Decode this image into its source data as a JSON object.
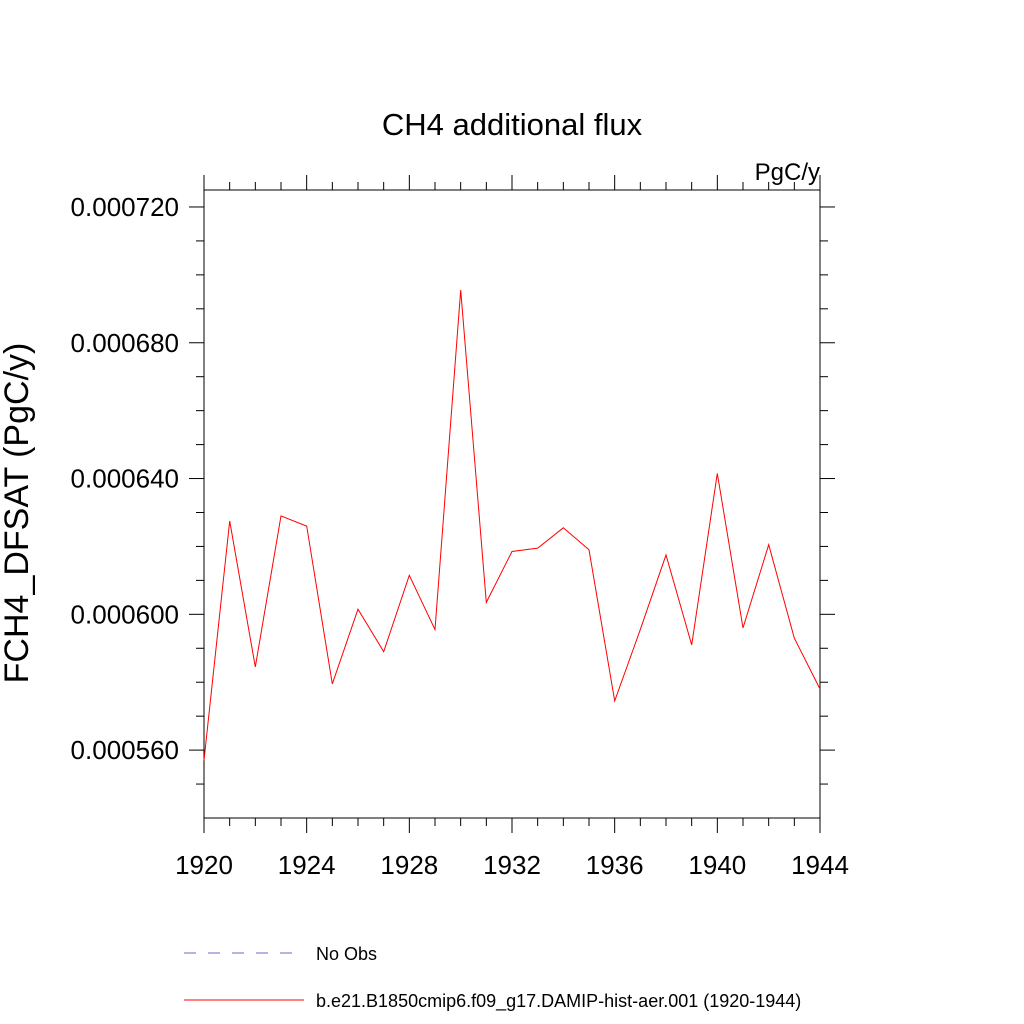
{
  "chart_data": {
    "type": "line",
    "title": "CH4 additional flux",
    "units_label": "PgC/y",
    "ylabel": "FCH4_DFSAT  (PgC/y)",
    "xlabel": "",
    "xlim": [
      1920,
      1944
    ],
    "ylim": [
      0.00054,
      0.000725
    ],
    "x_ticks": [
      1920,
      1924,
      1928,
      1932,
      1936,
      1940,
      1944
    ],
    "x_tick_labels": [
      "1920",
      "1924",
      "1928",
      "1932",
      "1936",
      "1940",
      "1944"
    ],
    "y_ticks": [
      0.00056,
      0.0006,
      0.00064,
      0.00068,
      0.00072
    ],
    "y_tick_labels": [
      "0.000560",
      "0.000600",
      "0.000640",
      "0.000680",
      "0.000720"
    ],
    "grid": false,
    "legend_position": "bottom",
    "series": [
      {
        "name": "b.e21.B1850cmip6.f09_g17.DAMIP-hist-aer.001 (1920-1944)",
        "color": "#ff0000",
        "style": "solid",
        "x": [
          1920,
          1921,
          1922,
          1923,
          1924,
          1925,
          1926,
          1927,
          1928,
          1929,
          1930,
          1931,
          1932,
          1933,
          1934,
          1935,
          1936,
          1937,
          1938,
          1939,
          1940,
          1941,
          1942,
          1943,
          1944
        ],
        "y": [
          0.000557,
          0.0006275,
          0.0005845,
          0.000629,
          0.000626,
          0.0005795,
          0.0006015,
          0.000589,
          0.0006115,
          0.0005955,
          0.0006955,
          0.0006035,
          0.0006185,
          0.0006195,
          0.0006255,
          0.000619,
          0.0005745,
          0.0005955,
          0.0006175,
          0.000591,
          0.0006415,
          0.000596,
          0.0006205,
          0.000593,
          0.000578
        ]
      },
      {
        "name": "No Obs",
        "color": "#6a6acd",
        "style": "dashed",
        "x": [],
        "y": []
      }
    ]
  }
}
